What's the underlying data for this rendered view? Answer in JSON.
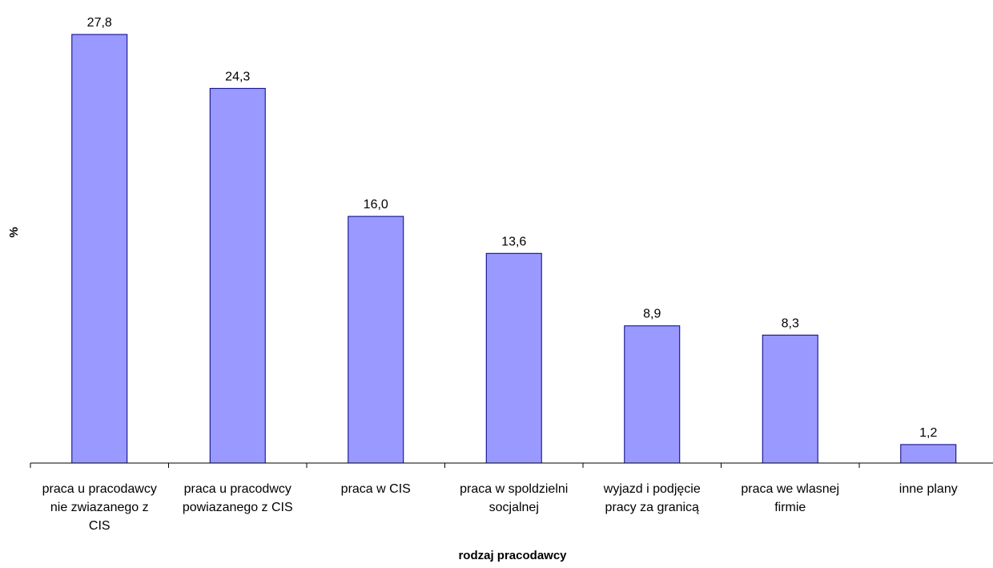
{
  "chart_data": {
    "type": "bar",
    "categories": [
      [
        "praca u pracodawcy",
        "nie zwiazanego z",
        "CIS"
      ],
      [
        "praca u pracodwcy",
        "powiazanego z CIS"
      ],
      [
        "praca w CIS"
      ],
      [
        "praca w spoldzielni",
        "socjalnej"
      ],
      [
        "wyjazd i podjęcie",
        "pracy za granicą"
      ],
      [
        "praca we wlasnej",
        "firmie"
      ],
      [
        "inne plany"
      ]
    ],
    "values": [
      27.8,
      24.3,
      16.0,
      13.6,
      8.9,
      8.3,
      1.2
    ],
    "value_labels": [
      "27,8",
      "24,3",
      "16,0",
      "13,6",
      "8,9",
      "8,3",
      "1,2"
    ],
    "xlabel": "rodzaj pracodawcy",
    "ylabel": "%",
    "ylim": [
      0,
      27.8
    ],
    "bar_color": "#9999ff",
    "bar_stroke": "#000080",
    "grid": false,
    "legend": "none"
  }
}
